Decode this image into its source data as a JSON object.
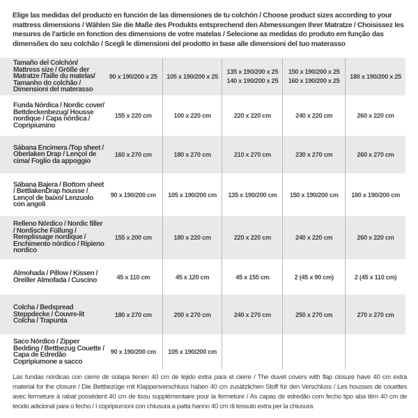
{
  "intro": "Elige las medidas del producto en función de las dimensiones de tu colchón / Choose product sizes according to your mattress dimensions / Wählen Sie die Maße des Produkts entsprechend den Abmessungen Ihrer Matratze / Choisissez les mesures de l'article en fonction des dimensions de votre matelas / Selecione as medidas do produto em função das dimensões do seu colchão / Scegli le dimensioni del prodotto in base alle dimensioni del tuo materasso",
  "table": {
    "header": {
      "label": "Tamaño del Colchón/ Mattress size / Größe der Matratze /Taille du matelas/ Tamanho do colchão / Dimensioni del materasso",
      "cols": [
        [
          "90 x 190/200 x 25"
        ],
        [
          "105 x 190/200 x 25"
        ],
        [
          "135 x 190/200 x 25",
          "140 x 190/200 x 25"
        ],
        [
          "150 x 190/200 x 25",
          "160 x 190/200 x 25"
        ],
        [
          "180 x 190/200 x 25"
        ]
      ]
    },
    "rows": [
      {
        "label": "Funda Nórdica /  Nordic cover/ Bettdeckenbezug/ Housse nordique  / Capa nórdica / Copripiumino",
        "values": [
          "155 x 220 cm",
          "100 x 220 cm",
          "220 x 220 cm",
          "240 x 220 cm",
          "260 x 220 cm"
        ]
      },
      {
        "label": "Sábana Encimera /Top sheet / Oberlaken Drap / Lençol de cima/ Foglio da appoggio",
        "values": [
          "160 x 270 cm",
          "180 x 270 cm",
          "210 x 270 cm",
          "230 x 270 cm",
          "260 x 270 cm"
        ]
      },
      {
        "label": "Sábana Bajera / Bottom sheet / BettlakenDrap housse / Lençol de baixo/ Lenzuolo con angoli",
        "values": [
          "90 x 190/200 cm",
          "105 x 190/200 cm",
          "135 x 190/200 cm",
          "150 x 190/200 cm",
          "180 x 190/200 cm"
        ]
      },
      {
        "label": "Relleno Nórdico / Nordic filler / Nordische Füllung / Remplissage nordique / Enchimento nórdico / Ripieno nordico",
        "values": [
          "155 x 200 cm",
          "180 x 220 cm",
          "220 x 220 cm",
          "240 x 220 cm",
          "260 x 220 cm"
        ]
      },
      {
        "label": "Almohada  / Pillow / Kissen / Oreiller Almofada / Cuscino",
        "values": [
          "45 x 110 cm",
          "45 x 120 cm",
          "45 x 155 cm",
          "2 (45 x 90 cm)",
          "2 (45 x 110 cm)"
        ]
      },
      {
        "label": "Colcha / Bedspread Steppdecke / Couvre-lit Colcha / Trapunta",
        "values": [
          "180 x 270 cm",
          "200 x 270 cm",
          "240 x 270 cm",
          "250 x 270 cm",
          "270 x 270 cm"
        ]
      },
      {
        "label": "Saco Nórdico / Zipper Bedding / Bettbezug Couette  / Capa de Edredão Copripiumone a sacco",
        "values": [
          "90 x 190/200 cm",
          "105 x 190/200 cm",
          "",
          "",
          ""
        ]
      }
    ]
  },
  "footnote": "Las fundas nórdicas con cierre de solapa tienen 40 cm de tejido extra para el cierre  / The duvet covers with flap closure have 40 cm extra material for the closure / Die Bettbezüge mit Klappenverschluss haben 40 cm zusätzlichen Stoff für den Verschluss / Les housses de couettes avec fermeture à rabat possèdent 40 cm de tissu supplémentaire pour la fermeture / As capas de edredão com fecho tipo aba têm 40 cm de tecido adicional para o fecho / I copripiumoni con chiusura a patta hanno 40 cm di tessuto extra per la chiusura"
}
